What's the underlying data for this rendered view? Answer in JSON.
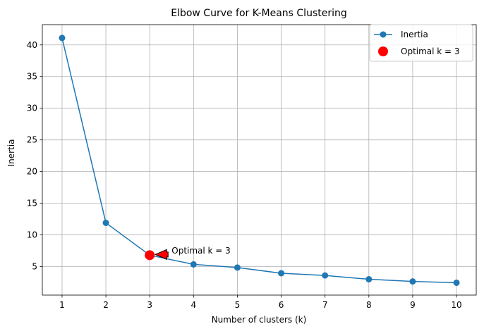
{
  "chart_data": {
    "type": "line",
    "title": "Elbow Curve for K-Means Clustering",
    "xlabel": "Number of clusters (k)",
    "ylabel": "Inertia",
    "x": [
      1,
      2,
      3,
      4,
      5,
      6,
      7,
      8,
      9,
      10
    ],
    "series": [
      {
        "name": "Inertia",
        "values": [
          41.1,
          11.9,
          6.8,
          5.35,
          4.85,
          3.95,
          3.6,
          3.0,
          2.65,
          2.45
        ],
        "color": "#1f77b4",
        "marker": "circle"
      }
    ],
    "highlight": {
      "name": "Optimal k = 3",
      "x": 3,
      "y": 6.8,
      "color": "#ff0000"
    },
    "annotation": {
      "text": "Optimal k = 3",
      "target_x": 3,
      "target_y": 6.8,
      "text_x": 3.5,
      "text_y": 7.5,
      "arrow_color": "#ff0000"
    },
    "xticks": [
      1,
      2,
      3,
      4,
      5,
      6,
      7,
      8,
      9,
      10
    ],
    "yticks": [
      5,
      10,
      15,
      20,
      25,
      30,
      35,
      40
    ],
    "xlim": [
      0.55,
      10.45
    ],
    "ylim": [
      0.5,
      43.2
    ],
    "grid": true,
    "legend_position": "top-right"
  }
}
